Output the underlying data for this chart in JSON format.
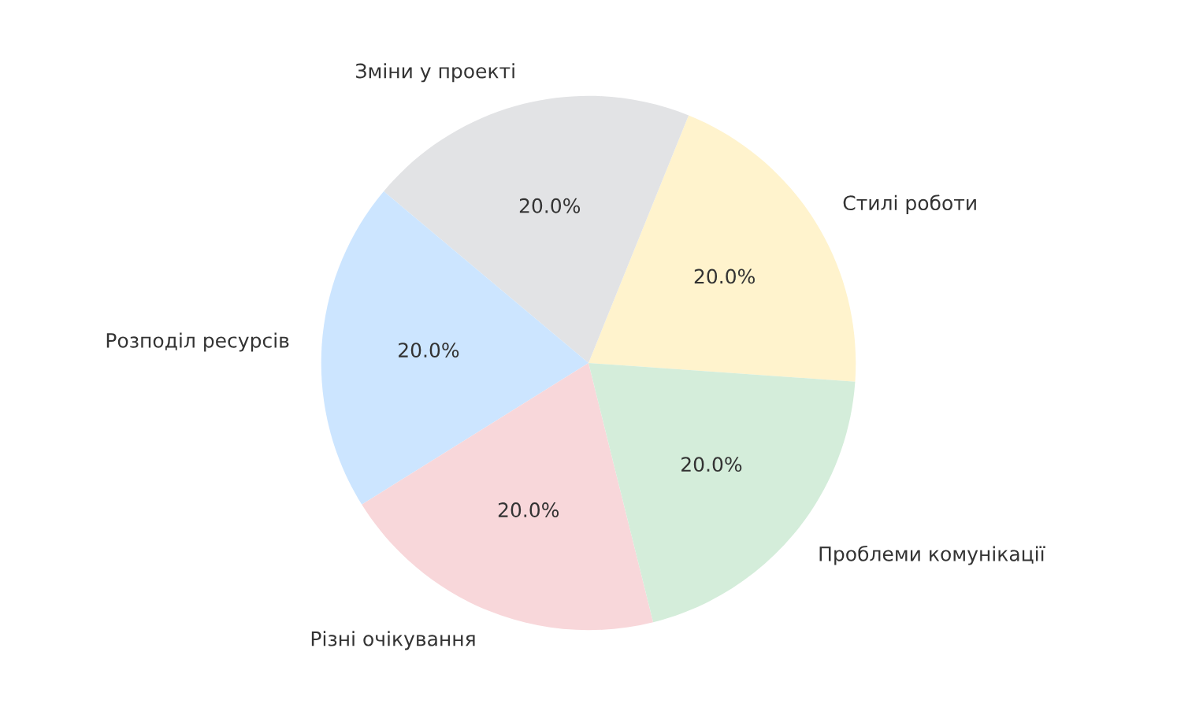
{
  "chart_data": {
    "type": "pie",
    "categories": [
      "Стилі роботи",
      "Зміни у проекті",
      "Розподіл ресурсів",
      "Різні очікування",
      "Проблеми комунікації"
    ],
    "values": [
      20,
      20,
      20,
      20,
      20
    ],
    "value_labels": [
      "20.0%",
      "20.0%",
      "20.0%",
      "20.0%",
      "20.0%"
    ],
    "colors": [
      "#fff3cd",
      "#e2e3e5",
      "#cce5ff",
      "#f8d7da",
      "#d4edda"
    ],
    "legend": false
  }
}
